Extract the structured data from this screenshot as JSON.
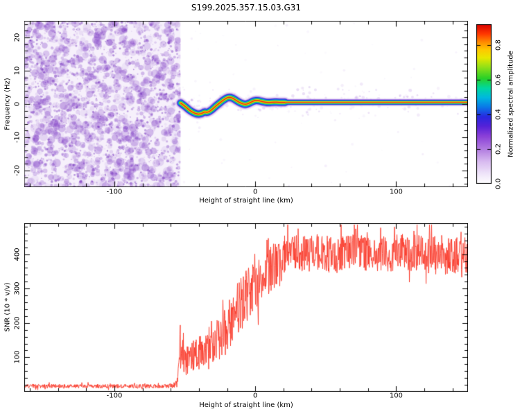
{
  "title": "S199.2025.357.15.03.G31",
  "background": "#ffffff",
  "chart_data": [
    {
      "type": "heatmap",
      "title": "S199.2025.357.15.03.G31",
      "xlabel": "Height of straight line (km)",
      "ylabel": "Frequency (Hz)",
      "xlim": [
        -164,
        151
      ],
      "ylim": [
        -25,
        25
      ],
      "xticks": [
        -100,
        0,
        100
      ],
      "yticks": [
        -20,
        -10,
        0,
        10,
        20
      ],
      "noise_region_x": [
        -164,
        -53
      ],
      "noise_rgb": "132,68,200",
      "trace_flat_start_x": 21,
      "trace_amplitude_peak": 0.9,
      "trace_centerline": [
        [
          -53,
          0.3
        ],
        [
          -50,
          -0.6
        ],
        [
          -47,
          -1.8
        ],
        [
          -44,
          -2.6
        ],
        [
          -41,
          -3.1
        ],
        [
          -38,
          -2.9
        ],
        [
          -36,
          -2.3
        ],
        [
          -34,
          -2.6
        ],
        [
          -31,
          -1.8
        ],
        [
          -28,
          -0.6
        ],
        [
          -25,
          0.4
        ],
        [
          -22,
          1.4
        ],
        [
          -19,
          2.1
        ],
        [
          -16,
          1.8
        ],
        [
          -13,
          0.9
        ],
        [
          -10,
          0.2
        ],
        [
          -7,
          -0.2
        ],
        [
          -4,
          0.3
        ],
        [
          -1,
          1.0
        ],
        [
          2,
          1.1
        ],
        [
          5,
          0.7
        ],
        [
          9,
          0.4
        ],
        [
          13,
          0.6
        ],
        [
          17,
          0.5
        ],
        [
          21,
          0.5
        ],
        [
          151,
          0.5
        ]
      ],
      "trace_layers": [
        {
          "color": "#dcc8f2",
          "width": 16,
          "alpha": 0.5
        },
        {
          "color": "#9a5ad8",
          "width": 12.5,
          "alpha": 0.65
        },
        {
          "color": "#2830d8",
          "width": 10,
          "alpha": 1
        },
        {
          "color": "#00b0e8",
          "width": 7.5,
          "alpha": 1
        },
        {
          "color": "#28cc38",
          "width": 5.4,
          "alpha": 1
        },
        {
          "color": "#f0e800",
          "width": 3.6,
          "alpha": 1
        },
        {
          "color": "#ff9800",
          "width": 2.2,
          "alpha": 1
        },
        {
          "color": "#e82018",
          "width": 1.2,
          "alpha": 1
        }
      ],
      "colorbar": {
        "label": "Normalized spectral amplitude",
        "ticks": [
          0.0,
          0.2,
          0.4,
          0.6,
          0.8
        ],
        "range": [
          0,
          0.92
        ],
        "colormap": [
          [
            0.0,
            "#ffffff"
          ],
          [
            0.06,
            "#f0e6fa"
          ],
          [
            0.14,
            "#d8baf0"
          ],
          [
            0.22,
            "#b07ae0"
          ],
          [
            0.3,
            "#8a3fd8"
          ],
          [
            0.36,
            "#5522d8"
          ],
          [
            0.42,
            "#2828e0"
          ],
          [
            0.48,
            "#0a78e8"
          ],
          [
            0.54,
            "#00b8e0"
          ],
          [
            0.6,
            "#00d8a0"
          ],
          [
            0.66,
            "#28d028"
          ],
          [
            0.73,
            "#90e018"
          ],
          [
            0.79,
            "#e8e800"
          ],
          [
            0.84,
            "#ffc800"
          ],
          [
            0.89,
            "#ff8800"
          ],
          [
            0.94,
            "#ff3800"
          ],
          [
            1.0,
            "#d80000"
          ]
        ]
      }
    },
    {
      "type": "line",
      "series_color": "#f93828",
      "xlabel": "Height of straight line (km)",
      "ylabel": "SNR (10 * v/v)",
      "xlim": [
        -164,
        151
      ],
      "ylim": [
        0,
        490
      ],
      "xticks": [
        -100,
        0,
        100
      ],
      "yticks": [
        100,
        200,
        300,
        400
      ],
      "profile": [
        [
          -164,
          16,
          6
        ],
        [
          -62,
          16,
          6
        ],
        [
          -57,
          20,
          9
        ],
        [
          -55,
          30,
          18
        ],
        [
          -53,
          140,
          80
        ],
        [
          -51,
          120,
          70
        ],
        [
          -49,
          90,
          45
        ],
        [
          -47,
          110,
          55
        ],
        [
          -45,
          95,
          45
        ],
        [
          -43,
          120,
          55
        ],
        [
          -41,
          105,
          50
        ],
        [
          -39,
          125,
          55
        ],
        [
          -37,
          110,
          50
        ],
        [
          -35,
          135,
          55
        ],
        [
          -33,
          120,
          55
        ],
        [
          -31,
          150,
          60
        ],
        [
          -29,
          135,
          55
        ],
        [
          -27,
          160,
          65
        ],
        [
          -25,
          150,
          60
        ],
        [
          -23,
          180,
          70
        ],
        [
          -21,
          170,
          65
        ],
        [
          -19,
          200,
          75
        ],
        [
          -16,
          215,
          75
        ],
        [
          -13,
          235,
          80
        ],
        [
          -10,
          255,
          80
        ],
        [
          -7,
          270,
          80
        ],
        [
          -4,
          285,
          80
        ],
        [
          -1,
          300,
          80
        ],
        [
          2,
          315,
          80
        ],
        [
          5,
          330,
          75
        ],
        [
          8,
          345,
          70
        ],
        [
          12,
          360,
          70
        ],
        [
          16,
          375,
          65
        ],
        [
          20,
          390,
          60
        ],
        [
          26,
          400,
          55
        ],
        [
          35,
          405,
          55
        ],
        [
          50,
          400,
          55
        ],
        [
          70,
          408,
          55
        ],
        [
          90,
          400,
          58
        ],
        [
          110,
          405,
          55
        ],
        [
          130,
          398,
          58
        ],
        [
          151,
          400,
          55
        ]
      ]
    }
  ]
}
